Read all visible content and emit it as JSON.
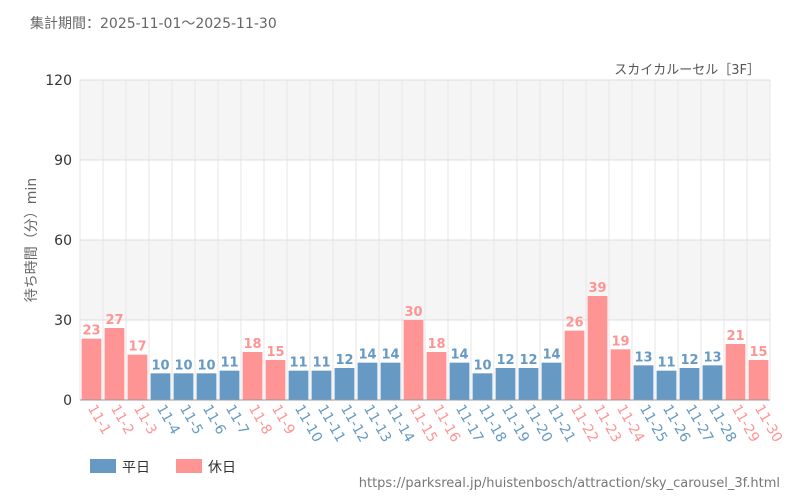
{
  "chart_data": {
    "type": "bar",
    "title": "集計期間：2025-11-01～2025-11-30",
    "subtitle": "スカイカルーセル［3F］",
    "y_label": "待ち時間（分）min",
    "source": "https://parksreal.jp/huistenbosch/attraction/sky_carousel_3f.html",
    "categories": [
      "11-1",
      "11-2",
      "11-3",
      "11-4",
      "11-5",
      "11-6",
      "11-7",
      "11-8",
      "11-9",
      "11-10",
      "11-11",
      "11-12",
      "11-13",
      "11-14",
      "11-15",
      "11-16",
      "11-17",
      "11-18",
      "11-19",
      "11-20",
      "11-21",
      "11-22",
      "11-23",
      "11-24",
      "11-25",
      "11-26",
      "11-27",
      "11-28",
      "11-29",
      "11-30"
    ],
    "series": [
      {
        "name": "平日",
        "color": "#6699c4",
        "values": [
          null,
          null,
          null,
          10,
          10,
          10,
          11,
          null,
          null,
          11,
          11,
          12,
          14,
          14,
          null,
          null,
          14,
          10,
          12,
          12,
          14,
          null,
          null,
          null,
          13,
          11,
          12,
          13,
          null,
          null
        ]
      },
      {
        "name": "休日",
        "color": "#ff9494",
        "values": [
          23,
          27,
          17,
          null,
          null,
          null,
          null,
          18,
          15,
          null,
          null,
          null,
          null,
          null,
          30,
          18,
          null,
          null,
          null,
          null,
          null,
          26,
          39,
          19,
          null,
          null,
          null,
          null,
          21,
          15
        ]
      }
    ],
    "ylim": [
      0,
      120
    ],
    "yticks": [
      0,
      30,
      60,
      90,
      120
    ],
    "grid": true
  }
}
